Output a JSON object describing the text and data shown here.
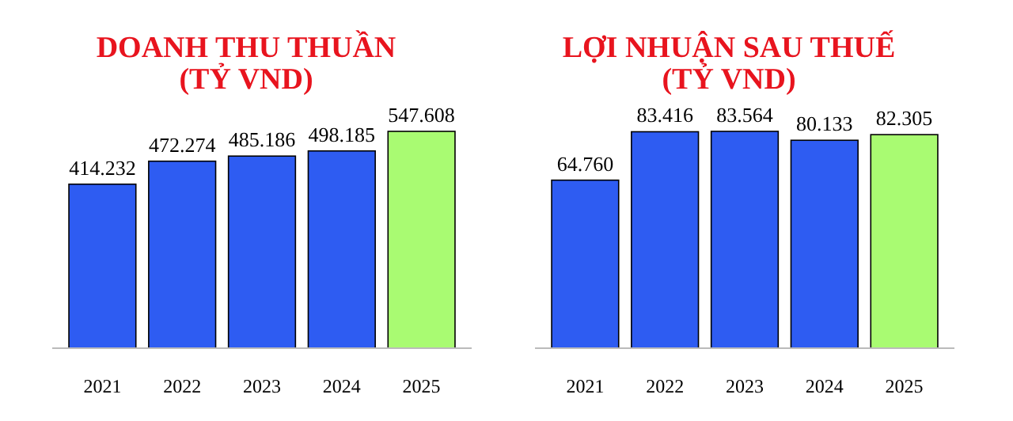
{
  "chart_data": [
    {
      "type": "bar",
      "title": "DOANH THU THUẦN\n(TỶ VND)",
      "categories": [
        "2021",
        "2022",
        "2023",
        "2024",
        "2025"
      ],
      "values": [
        414.232,
        472.274,
        485.186,
        498.185,
        547.608
      ],
      "value_labels": [
        "414.232",
        "472.274",
        "485.186",
        "498.185",
        "547.608"
      ],
      "colors": [
        "#2e5cf2",
        "#2e5cf2",
        "#2e5cf2",
        "#2e5cf2",
        "#a9fb72"
      ]
    },
    {
      "type": "bar",
      "title": "LỢI NHUẬN SAU THUẾ\n(TỶ VND)",
      "categories": [
        "2021",
        "2022",
        "2023",
        "2024",
        "2025"
      ],
      "values": [
        64.76,
        83.416,
        83.564,
        80.133,
        82.305
      ],
      "value_labels": [
        "64.760",
        "83.416",
        "83.564",
        "80.133",
        "82.305"
      ],
      "colors": [
        "#2e5cf2",
        "#2e5cf2",
        "#2e5cf2",
        "#2e5cf2",
        "#a9fb72"
      ]
    }
  ]
}
